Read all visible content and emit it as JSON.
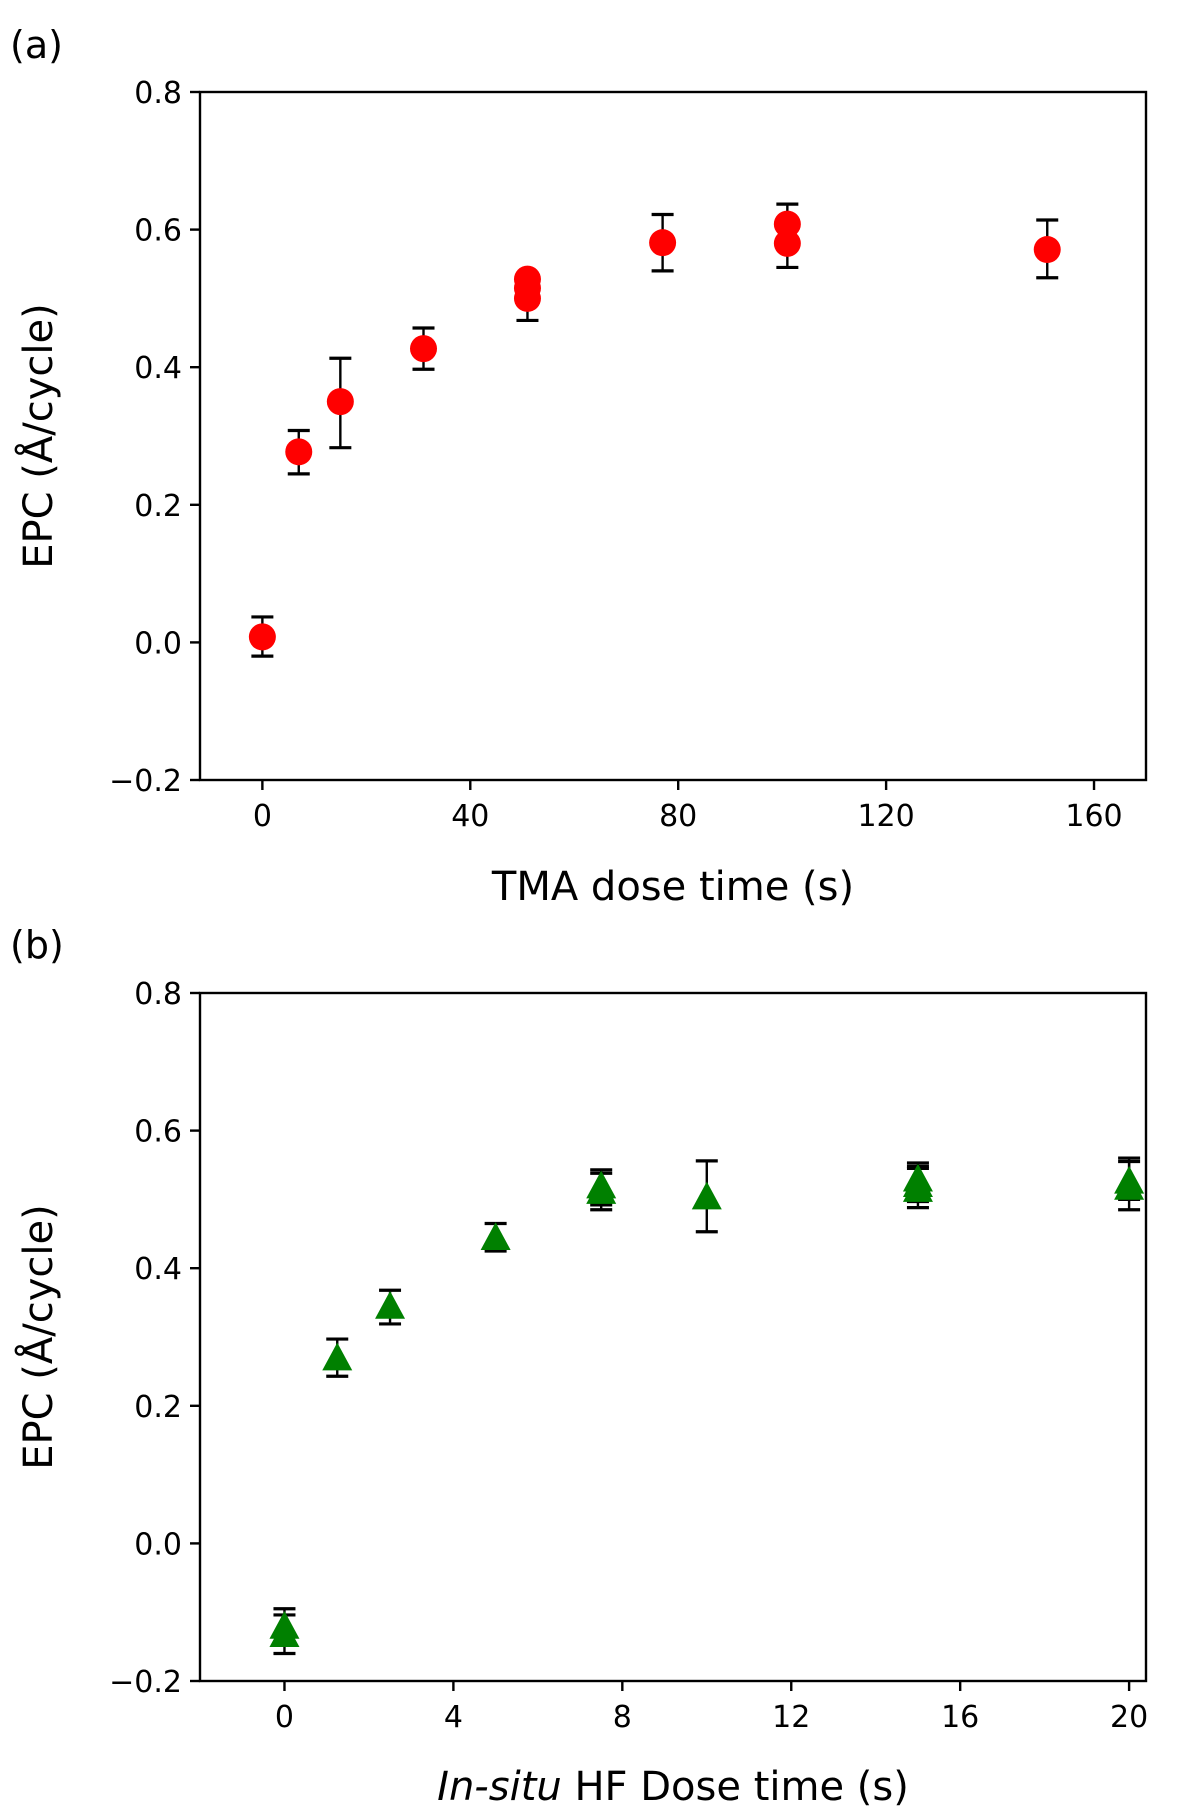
{
  "chart_data": [
    {
      "type": "scatter",
      "panel_label": "(a)",
      "title": "",
      "xlabel_parts": [
        {
          "text": "TMA dose time (s)",
          "italic": false
        }
      ],
      "ylabel": "EPC (Å/cycle)",
      "xlim": [
        -12,
        170
      ],
      "ylim": [
        -0.2,
        0.8
      ],
      "xticks": [
        0,
        40,
        80,
        120,
        160
      ],
      "yticks": [
        -0.2,
        0.0,
        0.2,
        0.4,
        0.6,
        0.8
      ],
      "ytick_labels": [
        "−0.2",
        "0.0",
        "0.2",
        "0.4",
        "0.6",
        "0.8"
      ],
      "grid": false,
      "marker": "circle",
      "color": "#ff0000",
      "errorbar_color": "#000000",
      "points": [
        {
          "x": 0,
          "y": 0.008,
          "err_lo": -0.02,
          "err_hi": 0.037
        },
        {
          "x": 7,
          "y": 0.277,
          "err_lo": 0.245,
          "err_hi": 0.308
        },
        {
          "x": 15,
          "y": 0.35,
          "err_lo": 0.283,
          "err_hi": 0.413
        },
        {
          "x": 31,
          "y": 0.427,
          "err_lo": 0.397,
          "err_hi": 0.457
        },
        {
          "x": 51,
          "y": 0.5,
          "err_lo": 0.468,
          "err_hi": null
        },
        {
          "x": 51,
          "y": 0.515,
          "err_lo": null,
          "err_hi": null
        },
        {
          "x": 51,
          "y": 0.528,
          "err_lo": null,
          "err_hi": null
        },
        {
          "x": 77,
          "y": 0.581,
          "err_lo": 0.54,
          "err_hi": 0.622
        },
        {
          "x": 101,
          "y": 0.58,
          "err_lo": 0.545,
          "err_hi": null
        },
        {
          "x": 101,
          "y": 0.608,
          "err_lo": null,
          "err_hi": 0.637
        },
        {
          "x": 151,
          "y": 0.571,
          "err_lo": 0.53,
          "err_hi": 0.614
        }
      ]
    },
    {
      "type": "scatter",
      "panel_label": "(b)",
      "title": "",
      "xlabel_parts": [
        {
          "text": "In-situ",
          "italic": true
        },
        {
          "text": " HF Dose time (s)",
          "italic": false
        }
      ],
      "ylabel": "EPC (Å/cycle)",
      "xlim": [
        -2,
        20.4
      ],
      "ylim": [
        -0.2,
        0.8
      ],
      "xticks": [
        0,
        4,
        8,
        12,
        16,
        20
      ],
      "yticks": [
        -0.2,
        0.0,
        0.2,
        0.4,
        0.6,
        0.8
      ],
      "ytick_labels": [
        "−0.2",
        "0.0",
        "0.2",
        "0.4",
        "0.6",
        "0.8"
      ],
      "grid": false,
      "marker": "triangle",
      "color": "#008000",
      "errorbar_color": "#000000",
      "points": [
        {
          "x": 0,
          "y": -0.12,
          "err_lo": -0.148,
          "err_hi": -0.095
        },
        {
          "x": 0,
          "y": -0.132,
          "err_lo": -0.16,
          "err_hi": -0.104
        },
        {
          "x": 1.25,
          "y": 0.27,
          "err_lo": 0.243,
          "err_hi": 0.297
        },
        {
          "x": 2.5,
          "y": 0.345,
          "err_lo": 0.319,
          "err_hi": 0.368
        },
        {
          "x": 5,
          "y": 0.445,
          "err_lo": 0.425,
          "err_hi": 0.465
        },
        {
          "x": 7.5,
          "y": 0.52,
          "err_lo": 0.492,
          "err_hi": 0.543
        },
        {
          "x": 7.5,
          "y": 0.512,
          "err_lo": 0.485,
          "err_hi": 0.538
        },
        {
          "x": 10,
          "y": 0.504,
          "err_lo": 0.453,
          "err_hi": 0.556
        },
        {
          "x": 15,
          "y": 0.53,
          "err_lo": 0.505,
          "err_hi": 0.553
        },
        {
          "x": 15,
          "y": 0.522,
          "err_lo": 0.497,
          "err_hi": 0.548
        },
        {
          "x": 15,
          "y": 0.515,
          "err_lo": 0.488,
          "err_hi": 0.545
        },
        {
          "x": 20,
          "y": 0.527,
          "err_lo": 0.5,
          "err_hi": 0.56
        },
        {
          "x": 20,
          "y": 0.518,
          "err_lo": 0.485,
          "err_hi": 0.555
        }
      ]
    }
  ]
}
